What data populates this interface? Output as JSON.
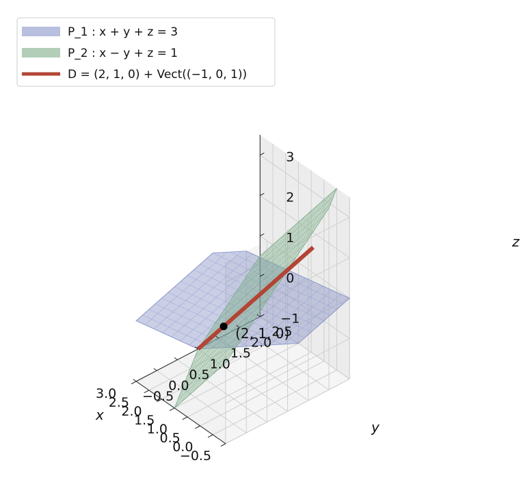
{
  "chart_data": {
    "type": "3d-surface",
    "title": "",
    "xlabel": "x",
    "ylabel": "y",
    "zlabel": "z",
    "xlim": [
      -0.5,
      3.0
    ],
    "ylim": [
      -0.5,
      2.5
    ],
    "zlim": [
      -1,
      3.5
    ],
    "xticks": [
      -0.5,
      0.0,
      0.5,
      1.0,
      1.5,
      2.0,
      2.5,
      3.0
    ],
    "xtick_labels": [
      "−0.5",
      "0.0",
      "0.5",
      "1.0",
      "1.5",
      "2.0",
      "2.5",
      "3.0"
    ],
    "yticks": [
      -0.5,
      0.0,
      0.5,
      1.0,
      1.5,
      2.0,
      2.5
    ],
    "ytick_labels": [
      "−0.5",
      "0.0",
      "0.5",
      "1.0",
      "1.5",
      "2.0",
      "2.5"
    ],
    "zticks": [
      -1,
      0,
      1,
      2,
      3
    ],
    "ztick_labels": [
      "−1",
      "0",
      "1",
      "2",
      "3"
    ],
    "grid": true,
    "legend_position": "top-left",
    "series": [
      {
        "name": "P_1 : x + y + z = 3",
        "kind": "plane",
        "equation": "x + y + z = 3",
        "color": "#8a95c8",
        "opacity": 0.45
      },
      {
        "name": "P_2 : x − y + z = 1",
        "kind": "plane",
        "equation": "x − y + z = 1",
        "color": "#7fae8a",
        "opacity": 0.35
      },
      {
        "name": "D = (2, 1, 0) + Vect((−1, 0, 1))",
        "kind": "line",
        "point": [
          2,
          1,
          0
        ],
        "direction": [
          -1,
          0,
          1
        ],
        "color": "#b24535"
      }
    ],
    "annotations": [
      {
        "text": "(2, 1, 0)",
        "point": [
          2,
          1,
          0
        ]
      }
    ]
  }
}
